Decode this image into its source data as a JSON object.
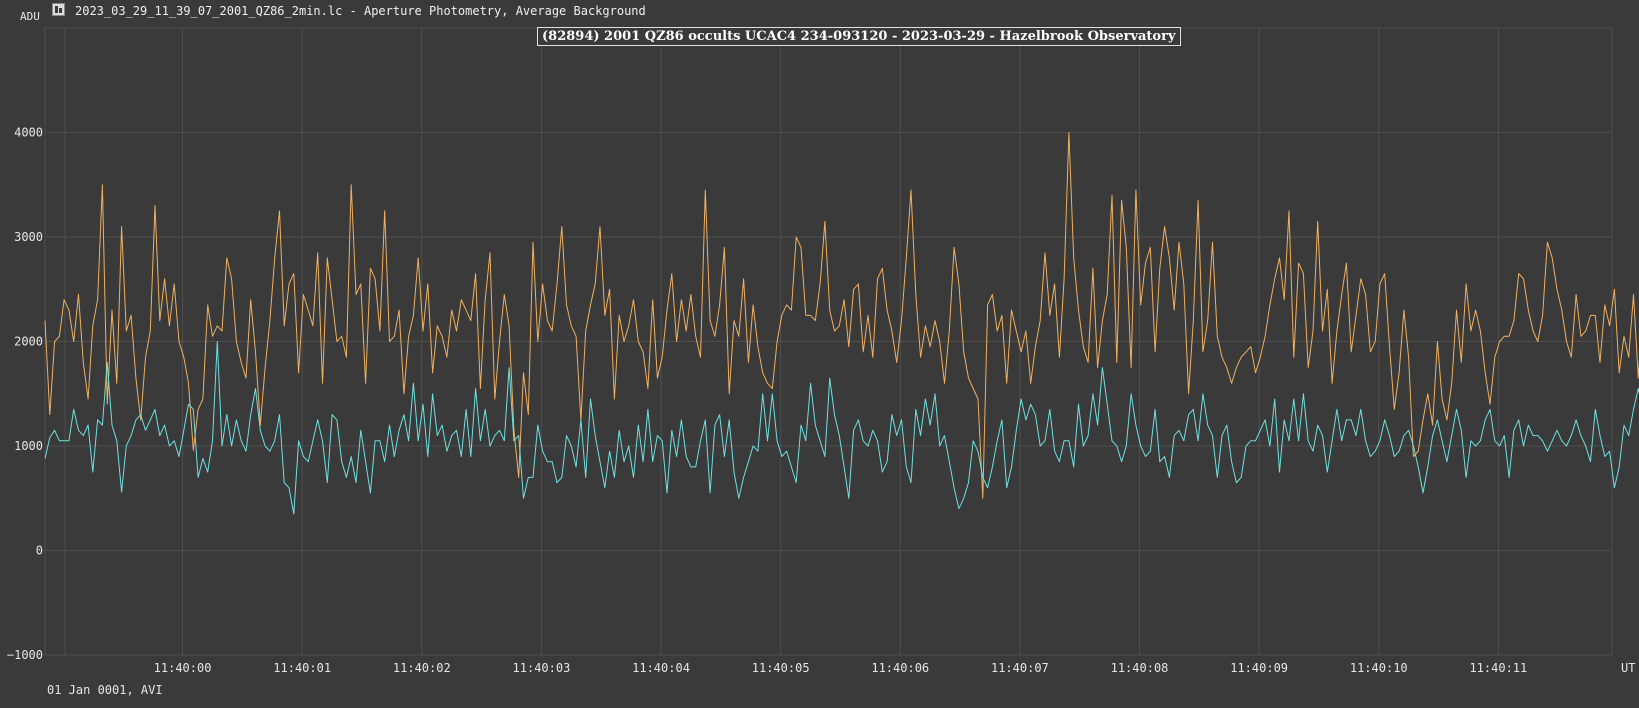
{
  "header": {
    "unit_label": "ADU",
    "window_title": "2023_03_29_11_39_07_2001_QZ86_2min.lc - Aperture Photometry, Average Background",
    "icon": "lightcurve-app-icon"
  },
  "footer": {
    "info": "01 Jan 0001, AVI"
  },
  "colors": {
    "background": "#3a3a3a",
    "grid": "#555555",
    "target_series": "#6fe0e0",
    "comparison_series": "#f0b060"
  },
  "chart_data": {
    "type": "line",
    "title": "(82894) 2001 QZ86 occults UCAC4 234-093120 - 2023-03-29 - Hazelbrook Observatory",
    "xlabel": "UT",
    "ylabel": "ADU",
    "xlim": [
      -1.15,
      11.95
    ],
    "ylim": [
      -1000,
      5000
    ],
    "x_ticks": [
      {
        "v": 0,
        "label": "11:40:00"
      },
      {
        "v": 1,
        "label": "11:40:01"
      },
      {
        "v": 2,
        "label": "11:40:02"
      },
      {
        "v": 3,
        "label": "11:40:03"
      },
      {
        "v": 4,
        "label": "11:40:04"
      },
      {
        "v": 5,
        "label": "11:40:05"
      },
      {
        "v": 6,
        "label": "11:40:06"
      },
      {
        "v": 7,
        "label": "11:40:07"
      },
      {
        "v": 8,
        "label": "11:40:08"
      },
      {
        "v": 9,
        "label": "11:40:09"
      },
      {
        "v": 10,
        "label": "11:40:10"
      },
      {
        "v": 11,
        "label": "11:40:11"
      }
    ],
    "y_ticks": [
      {
        "v": -1000,
        "label": "−1000"
      },
      {
        "v": 0,
        "label": "0"
      },
      {
        "v": 1000,
        "label": "1000"
      },
      {
        "v": 2000,
        "label": "2000"
      },
      {
        "v": 3000,
        "label": "3000"
      },
      {
        "v": 4000,
        "label": "4000"
      }
    ],
    "grid": true,
    "x_start": -1.15,
    "x_step": 0.04,
    "series": [
      {
        "color": "#f0b060",
        "values": [
          2200,
          1300,
          2000,
          2050,
          2400,
          2300,
          2000,
          2450,
          1800,
          1450,
          2150,
          2400,
          3500,
          1400,
          2300,
          1600,
          3100,
          2100,
          2250,
          1650,
          1250,
          1850,
          2100,
          3300,
          2200,
          2600,
          2150,
          2550,
          2000,
          1850,
          1600,
          960,
          1350,
          1450,
          2350,
          2050,
          2150,
          2100,
          2800,
          2600,
          2000,
          1800,
          1650,
          2400,
          1900,
          1200,
          1750,
          2200,
          2800,
          3250,
          2150,
          2550,
          2650,
          1700,
          2450,
          2300,
          2150,
          2850,
          1600,
          2800,
          2400,
          2000,
          2050,
          1850,
          3500,
          2450,
          2550,
          1600,
          2700,
          2600,
          2100,
          3250,
          2000,
          2050,
          2300,
          1500,
          2050,
          2250,
          2800,
          2100,
          2550,
          1700,
          2150,
          2050,
          1850,
          2300,
          2100,
          2400,
          2300,
          2200,
          2650,
          1550,
          2400,
          2850,
          1450,
          2000,
          2450,
          2150,
          1150,
          700,
          1700,
          1300,
          2950,
          2000,
          2550,
          2200,
          2100,
          2550,
          3100,
          2350,
          2150,
          2050,
          1250,
          2100,
          2350,
          2550,
          3100,
          2250,
          2500,
          1450,
          2250,
          2000,
          2150,
          2400,
          2000,
          1900,
          1550,
          2400,
          1650,
          1850,
          2300,
          2650,
          2000,
          2400,
          2100,
          2450,
          2050,
          1850,
          3450,
          2200,
          2050,
          2350,
          2900,
          1500,
          2200,
          2050,
          2600,
          1800,
          2350,
          1950,
          1700,
          1600,
          1550,
          2000,
          2250,
          2350,
          2300,
          3000,
          2900,
          2250,
          2250,
          2200,
          2550,
          3150,
          2300,
          2100,
          2150,
          2400,
          1950,
          2500,
          2550,
          1900,
          2250,
          1850,
          2600,
          2700,
          2300,
          2100,
          1800,
          2200,
          2800,
          3450,
          2450,
          1850,
          2150,
          1950,
          2200,
          2000,
          1600,
          2100,
          2900,
          2550,
          1900,
          1650,
          1550,
          1450,
          500,
          2350,
          2450,
          2100,
          2250,
          1600,
          2300,
          2100,
          1900,
          2100,
          1600,
          1950,
          2200,
          2850,
          2250,
          2550,
          1850,
          2600,
          4000,
          2800,
          2300,
          1950,
          1800,
          2700,
          1750,
          2200,
          2450,
          3400,
          1800,
          3350,
          2900,
          1750,
          3450,
          2350,
          2750,
          2900,
          1900,
          2700,
          3100,
          2800,
          2300,
          2950,
          2550,
          1500,
          2200,
          3350,
          1900,
          2200,
          2950,
          2050,
          1850,
          1750,
          1600,
          1750,
          1850,
          1900,
          1950,
          1700,
          1850,
          2050,
          2350,
          2600,
          2800,
          2400,
          3250,
          1850,
          2750,
          2650,
          1750,
          2100,
          3150,
          2100,
          2500,
          1600,
          2100,
          2450,
          2750,
          1900,
          2250,
          2600,
          2450,
          1900,
          2000,
          2550,
          2650,
          1950,
          1350,
          1700,
          2300,
          1850,
          900,
          950,
          1250,
          1500,
          1200,
          2000,
          1450,
          1250,
          1600,
          2300,
          1800,
          2550,
          2100,
          2300,
          2100,
          1700,
          1400,
          1850,
          2000,
          2050,
          2050,
          2200,
          2650,
          2600,
          2300,
          2100,
          2000,
          2250,
          2950,
          2800,
          2500,
          2300,
          2000,
          1850,
          2450,
          2050,
          2100,
          2250,
          2250,
          1800,
          2350,
          2150,
          2500,
          1700,
          2050,
          1850,
          2450,
          1650,
          2350,
          2350,
          2050,
          2050,
          1200,
          1250,
          1550,
          2600,
          1800,
          1600,
          2050,
          2350,
          1800,
          1700,
          2350,
          2000,
          1800,
          2150,
          2750,
          2400,
          2350,
          2950,
          2800,
          2500,
          2400,
          2500,
          2400,
          2350,
          2700,
          2600,
          2400,
          2850,
          3450,
          2800,
          2600,
          2350,
          2250,
          2100,
          1800,
          2700,
          2850,
          2350,
          2150,
          2500,
          2300,
          1900,
          2250,
          2000,
          2150,
          1800,
          2400,
          2600,
          2150,
          2200,
          3100,
          2550,
          1700,
          1450,
          2450,
          2300,
          1900,
          1650,
          2350,
          2150
        ]
      },
      {
        "color": "#6fe0e0",
        "values": [
          880,
          1080,
          1150,
          1050,
          1050,
          1050,
          1350,
          1150,
          1100,
          1200,
          750,
          1250,
          1200,
          1800,
          1200,
          1050,
          560,
          1000,
          1100,
          1250,
          1300,
          1150,
          1250,
          1350,
          1100,
          1200,
          1000,
          1050,
          900,
          1150,
          1400,
          1350,
          700,
          880,
          750,
          1050,
          2000,
          1000,
          1300,
          1000,
          1250,
          1050,
          950,
          1300,
          1550,
          1150,
          1000,
          950,
          1050,
          1300,
          650,
          600,
          350,
          1050,
          900,
          850,
          1050,
          1250,
          1050,
          650,
          1300,
          1250,
          850,
          700,
          900,
          650,
          1150,
          850,
          550,
          1050,
          1050,
          850,
          1200,
          900,
          1150,
          1300,
          1050,
          1600,
          1050,
          1400,
          900,
          1500,
          1100,
          1200,
          950,
          1100,
          1150,
          900,
          1350,
          900,
          1550,
          1050,
          1350,
          1000,
          1100,
          1150,
          1050,
          1750,
          1050,
          1100,
          500,
          700,
          700,
          1200,
          950,
          850,
          850,
          650,
          700,
          1100,
          1000,
          800,
          1250,
          700,
          1450,
          1100,
          850,
          600,
          950,
          700,
          1150,
          850,
          1000,
          700,
          1200,
          850,
          1350,
          850,
          1100,
          1050,
          550,
          1150,
          900,
          1250,
          900,
          800,
          800,
          1050,
          1250,
          550,
          1200,
          1300,
          900,
          1250,
          750,
          500,
          700,
          850,
          1000,
          950,
          1500,
          1050,
          1500,
          1050,
          900,
          950,
          800,
          650,
          1200,
          1050,
          1600,
          1200,
          1050,
          900,
          1650,
          1300,
          1100,
          800,
          500,
          1150,
          1250,
          1050,
          1000,
          1150,
          1050,
          750,
          850,
          1300,
          1100,
          1250,
          800,
          650,
          1350,
          1100,
          1450,
          1200,
          1500,
          1000,
          1100,
          850,
          600,
          400,
          500,
          650,
          1050,
          950,
          700,
          600,
          800,
          1050,
          1250,
          600,
          800,
          1150,
          1450,
          1250,
          1400,
          1300,
          1000,
          1050,
          1350,
          950,
          850,
          1050,
          1050,
          800,
          1400,
          1000,
          1100,
          1500,
          1200,
          1750,
          1400,
          1050,
          1000,
          850,
          1000,
          1500,
          1200,
          1000,
          900,
          950,
          1350,
          850,
          900,
          700,
          1100,
          1150,
          1050,
          1300,
          1350,
          1050,
          1500,
          1200,
          1100,
          700,
          1100,
          1200,
          850,
          650,
          700,
          1000,
          1050,
          1050,
          1150,
          1250,
          1000,
          1450,
          750,
          1250,
          1050,
          1450,
          1050,
          1500,
          1050,
          950,
          1200,
          1100,
          750,
          1050,
          1350,
          1050,
          1250,
          1250,
          1100,
          1350,
          1050,
          900,
          950,
          1050,
          1250,
          1100,
          900,
          950,
          1100,
          1150,
          1000,
          800,
          550,
          800,
          1100,
          1250,
          1050,
          850,
          1100,
          1350,
          1150,
          700,
          1050,
          1000,
          1050,
          1250,
          1350,
          1050,
          1000,
          1100,
          700,
          1150,
          1250,
          1000,
          1200,
          1100,
          1100,
          1050,
          950,
          1050,
          1150,
          1050,
          1000,
          1100,
          1250,
          1100,
          1000,
          850,
          1350,
          1100,
          900,
          950,
          600,
          800,
          1200,
          1100,
          1350,
          1550,
          1350,
          1200,
          1150,
          1100,
          1050,
          1000,
          1100,
          1200,
          1150,
          950,
          1500,
          1800,
          1500,
          1200,
          1000,
          1400,
          1300,
          1300,
          1400,
          1500,
          1450,
          1600,
          1100,
          1300,
          1400,
          1700,
          1650,
          1350,
          1300,
          1400,
          1250,
          1200,
          1150,
          1600,
          1400,
          1500,
          1300,
          1100,
          1200,
          1200,
          1250,
          1050,
          1150,
          1100,
          1300,
          1050,
          900,
          1100,
          1200,
          1400,
          1200,
          1050,
          1150,
          1000,
          1300,
          1100,
          950,
          1100,
          1300,
          1150,
          1400,
          1200,
          1300,
          1500,
          1250,
          1100,
          1150,
          1250,
          1000,
          1100
        ]
      }
    ]
  }
}
